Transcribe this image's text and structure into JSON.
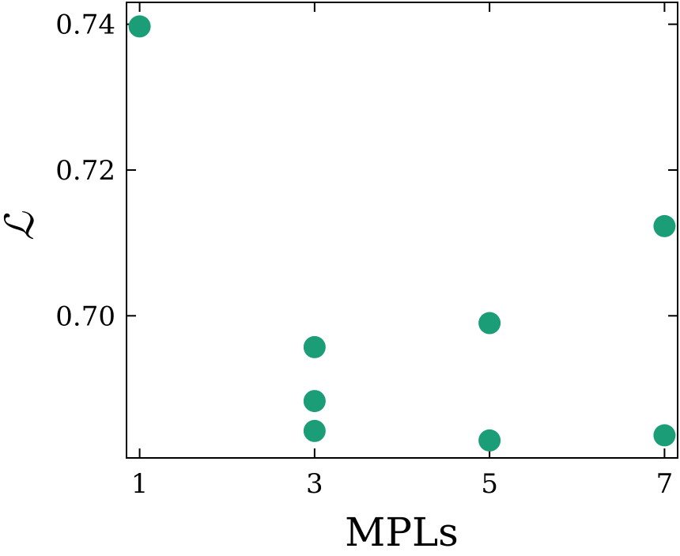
{
  "chart_data": {
    "type": "scatter",
    "xlabel": "MPLs",
    "ylabel": "ℒ",
    "xlim": [
      0.85,
      7.15
    ],
    "ylim": [
      0.6805,
      0.743
    ],
    "xticks": [
      1,
      3,
      5,
      7
    ],
    "xtick_labels": [
      "1",
      "3",
      "5",
      "7"
    ],
    "yticks": [
      0.7,
      0.72,
      0.74
    ],
    "ytick_labels": [
      "0.70",
      "0.72",
      "0.74"
    ],
    "grid": false,
    "marker_color": "#1b9e77",
    "points": [
      {
        "x": 1,
        "y": 0.7397
      },
      {
        "x": 3,
        "y": 0.6957
      },
      {
        "x": 3,
        "y": 0.6883
      },
      {
        "x": 3,
        "y": 0.6842
      },
      {
        "x": 5,
        "y": 0.699
      },
      {
        "x": 5,
        "y": 0.6829
      },
      {
        "x": 7,
        "y": 0.7123
      },
      {
        "x": 7,
        "y": 0.6836
      }
    ]
  }
}
